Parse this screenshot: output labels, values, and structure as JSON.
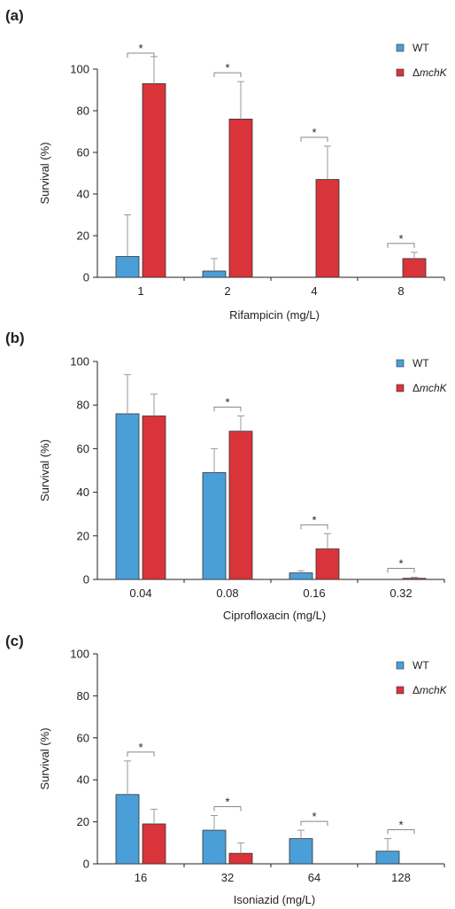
{
  "colors": {
    "wt": "#4a9fd8",
    "mutant": "#d9343a"
  },
  "legend": {
    "wt": "WT",
    "mutant_prefix": "Δ",
    "mutant_name": "mchK"
  },
  "chart_data": [
    {
      "type": "bar",
      "panel_label": "(a)",
      "ylabel": "Survival (%)",
      "xlabel": "Rifampicin (mg/L)",
      "ylim": [
        0,
        100
      ],
      "yticks": [
        0,
        20,
        40,
        60,
        80,
        100
      ],
      "categories": [
        "1",
        "2",
        "4",
        "8"
      ],
      "series": [
        {
          "name": "WT",
          "values": [
            10,
            3,
            0,
            0
          ],
          "errors": [
            20,
            6,
            0,
            0
          ]
        },
        {
          "name": "ΔmchK",
          "values": [
            93,
            76,
            47,
            9
          ],
          "errors": [
            13,
            18,
            16,
            3
          ]
        }
      ],
      "significance": [
        "*",
        "*",
        "*",
        "*"
      ],
      "legend_position": "top-right"
    },
    {
      "type": "bar",
      "panel_label": "(b)",
      "ylabel": "Survival (%)",
      "xlabel": "Ciprofloxacin (mg/L)",
      "ylim": [
        0,
        100
      ],
      "yticks": [
        0,
        20,
        40,
        60,
        80,
        100
      ],
      "categories": [
        "0.04",
        "0.08",
        "0.16",
        "0.32"
      ],
      "series": [
        {
          "name": "WT",
          "values": [
            76,
            49,
            3,
            0
          ],
          "errors": [
            18,
            11,
            1,
            0
          ]
        },
        {
          "name": "ΔmchK",
          "values": [
            75,
            68,
            14,
            0.5
          ],
          "errors": [
            10,
            7,
            7,
            0.5
          ]
        }
      ],
      "significance": [
        "",
        "*",
        "*",
        "*"
      ],
      "legend_position": "top-right"
    },
    {
      "type": "bar",
      "panel_label": "(c)",
      "ylabel": "Survival (%)",
      "xlabel": "Isoniazid (mg/L)",
      "ylim": [
        0,
        100
      ],
      "yticks": [
        0,
        20,
        40,
        60,
        80,
        100
      ],
      "categories": [
        "16",
        "32",
        "64",
        "128"
      ],
      "series": [
        {
          "name": "WT",
          "values": [
            33,
            16,
            12,
            6
          ],
          "errors": [
            16,
            7,
            4,
            6
          ]
        },
        {
          "name": "ΔmchK",
          "values": [
            19,
            5,
            0,
            0
          ],
          "errors": [
            7,
            5,
            0,
            0
          ]
        }
      ],
      "significance": [
        "*",
        "*",
        "*",
        "*"
      ],
      "legend_position": "top-right"
    }
  ]
}
